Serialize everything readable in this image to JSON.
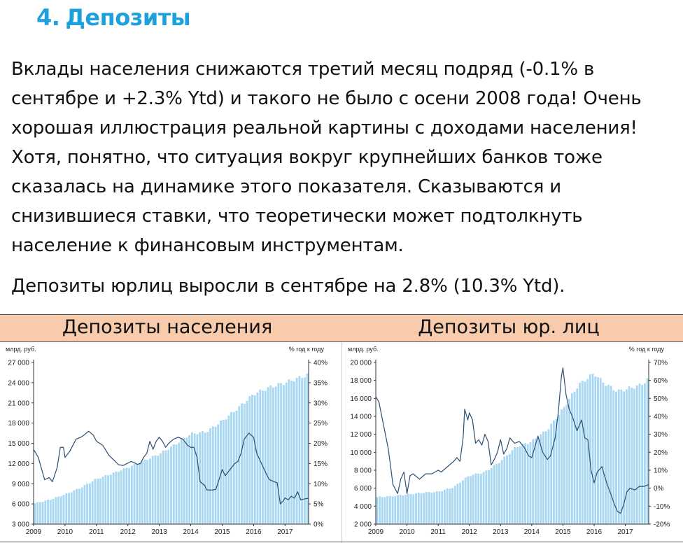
{
  "heading": {
    "number": "4.",
    "text": "Депозиты"
  },
  "paragraphs": [
    "Вклады населения снижаются третий месяц подряд (-0.1% в сентябре и +2.3% Ytd) и такого не было с осени 2008 года! Очень хорошая иллюстрация реальной картины с доходами населения! Хотя, понятно, что ситуация вокруг крупнейших банков тоже сказалась на динамике этого показателя. Сказываются и снизившиеся ставки, что теоретически может подтолкнуть население к финансовым инструментам.",
    "Депозиты юрлиц выросли в сентябре на 2.8% (10.3% Ytd)."
  ],
  "chart_data": [
    {
      "type": "bar+line",
      "title": "Депозиты населения",
      "left_unit": "млрд. руб.",
      "right_unit": "% год к году",
      "x_labels": [
        "2009",
        "2010",
        "2011",
        "2012",
        "2013",
        "2014",
        "2015",
        "2016",
        "2017"
      ],
      "x_range": [
        2009.0,
        2017.75
      ],
      "ylim_left": [
        3000,
        27000
      ],
      "ylim_right": [
        0,
        40
      ],
      "y_ticks_left": [
        "3 000",
        "6 000",
        "9 000",
        "12 000",
        "15 000",
        "18 000",
        "21 000",
        "24 000",
        "27 000"
      ],
      "y_ticks_right": [
        "0%",
        "5%",
        "10%",
        "15%",
        "20%",
        "25%",
        "30%",
        "35%",
        "40%"
      ],
      "bar_color": "#a9d8f2",
      "line_color": "#2b4f73",
      "bar_keypoints": [
        [
          2009.0,
          6050
        ],
        [
          2009.5,
          6600
        ],
        [
          2010.0,
          7400
        ],
        [
          2010.5,
          8400
        ],
        [
          2011.0,
          9700
        ],
        [
          2011.5,
          10500
        ],
        [
          2012.0,
          11400
        ],
        [
          2012.5,
          12400
        ],
        [
          2013.0,
          13400
        ],
        [
          2013.5,
          14800
        ],
        [
          2014.0,
          16400
        ],
        [
          2014.5,
          16700
        ],
        [
          2015.0,
          18300
        ],
        [
          2015.5,
          20200
        ],
        [
          2016.0,
          22300
        ],
        [
          2016.5,
          23300
        ],
        [
          2017.0,
          24000
        ],
        [
          2017.75,
          25200
        ]
      ],
      "line_points": [
        [
          2009.0,
          18.5
        ],
        [
          2009.15,
          16.5
        ],
        [
          2009.35,
          11
        ],
        [
          2009.5,
          11.5
        ],
        [
          2009.6,
          10.5
        ],
        [
          2009.75,
          14
        ],
        [
          2009.85,
          19
        ],
        [
          2009.95,
          19
        ],
        [
          2010.0,
          16.5
        ],
        [
          2010.15,
          18
        ],
        [
          2010.35,
          21
        ],
        [
          2010.5,
          21.5
        ],
        [
          2010.6,
          22
        ],
        [
          2010.75,
          23
        ],
        [
          2010.9,
          22
        ],
        [
          2011.0,
          20.5
        ],
        [
          2011.2,
          19.5
        ],
        [
          2011.4,
          17
        ],
        [
          2011.6,
          15.5
        ],
        [
          2011.7,
          14.7
        ],
        [
          2011.85,
          14.5
        ],
        [
          2011.95,
          14.9
        ],
        [
          2012.1,
          15.5
        ],
        [
          2012.2,
          15.2
        ],
        [
          2012.3,
          14.8
        ],
        [
          2012.4,
          15.0
        ],
        [
          2012.5,
          16.5
        ],
        [
          2012.6,
          17.5
        ],
        [
          2012.7,
          20.5
        ],
        [
          2012.8,
          18.5
        ],
        [
          2012.9,
          20.5
        ],
        [
          2013.0,
          21.5
        ],
        [
          2013.1,
          20.5
        ],
        [
          2013.2,
          19
        ],
        [
          2013.3,
          20
        ],
        [
          2013.45,
          21
        ],
        [
          2013.6,
          21.5
        ],
        [
          2013.75,
          21.0
        ],
        [
          2013.9,
          19.5
        ],
        [
          2014.0,
          19.0
        ],
        [
          2014.1,
          19.0
        ],
        [
          2014.2,
          16.5
        ],
        [
          2014.3,
          10.5
        ],
        [
          2014.45,
          9.5
        ],
        [
          2014.5,
          8.5
        ],
        [
          2014.65,
          8.4
        ],
        [
          2014.8,
          8.6
        ],
        [
          2014.9,
          11.0
        ],
        [
          2015.0,
          13.5
        ],
        [
          2015.1,
          12.0
        ],
        [
          2015.25,
          13.5
        ],
        [
          2015.4,
          15.0
        ],
        [
          2015.5,
          15.5
        ],
        [
          2015.6,
          17.5
        ],
        [
          2015.7,
          21.0
        ],
        [
          2015.85,
          22.5
        ],
        [
          2016.0,
          21.5
        ],
        [
          2016.1,
          17.5
        ],
        [
          2016.25,
          15.0
        ],
        [
          2016.4,
          12.5
        ],
        [
          2016.5,
          11.0
        ],
        [
          2016.65,
          10.5
        ],
        [
          2016.75,
          10.2
        ],
        [
          2016.85,
          5.0
        ],
        [
          2016.95,
          5.8
        ],
        [
          2017.0,
          6.5
        ],
        [
          2017.1,
          6.0
        ],
        [
          2017.2,
          6.9
        ],
        [
          2017.3,
          6.4
        ],
        [
          2017.4,
          8.0
        ],
        [
          2017.5,
          6.0
        ],
        [
          2017.6,
          6.2
        ],
        [
          2017.75,
          6.4
        ]
      ]
    },
    {
      "type": "bar+line",
      "title": "Депозиты юр. лиц",
      "left_unit": "млрд. руб.",
      "right_unit": "% год к году",
      "x_labels": [
        "2009",
        "2010",
        "2011",
        "2012",
        "2013",
        "2014",
        "2015",
        "2016",
        "2017"
      ],
      "x_range": [
        2009.0,
        2017.75
      ],
      "ylim_left": [
        2000,
        20000
      ],
      "ylim_right": [
        -20,
        70
      ],
      "y_ticks_left": [
        "2 000",
        "4 000",
        "6 000",
        "8 000",
        "10 000",
        "12 000",
        "14 000",
        "16 000",
        "18 000",
        "20 000"
      ],
      "y_ticks_right": [
        "-20%",
        "-10%",
        "0%",
        "10%",
        "20%",
        "30%",
        "40%",
        "50%",
        "60%",
        "70%"
      ],
      "bar_color": "#a9d8f2",
      "line_color": "#2b4f73",
      "bar_keypoints": [
        [
          2009.0,
          5000
        ],
        [
          2009.5,
          5100
        ],
        [
          2010.0,
          5300
        ],
        [
          2010.5,
          5500
        ],
        [
          2011.0,
          5600
        ],
        [
          2011.5,
          6100
        ],
        [
          2011.75,
          6800
        ],
        [
          2012.0,
          7400
        ],
        [
          2012.5,
          7800
        ],
        [
          2013.0,
          9000
        ],
        [
          2013.5,
          10600
        ],
        [
          2014.0,
          11200
        ],
        [
          2014.5,
          12500
        ],
        [
          2015.0,
          14800
        ],
        [
          2015.5,
          17500
        ],
        [
          2016.0,
          18800
        ],
        [
          2016.25,
          17900
        ],
        [
          2016.5,
          17300
        ],
        [
          2016.75,
          16800
        ],
        [
          2017.0,
          17000
        ],
        [
          2017.5,
          17500
        ],
        [
          2017.75,
          18200
        ]
      ],
      "line_points": [
        [
          2009.0,
          51
        ],
        [
          2009.1,
          48
        ],
        [
          2009.25,
          35
        ],
        [
          2009.4,
          22
        ],
        [
          2009.55,
          2
        ],
        [
          2009.7,
          -3
        ],
        [
          2009.8,
          5
        ],
        [
          2009.9,
          9
        ],
        [
          2010.0,
          -3
        ],
        [
          2010.1,
          7
        ],
        [
          2010.2,
          8
        ],
        [
          2010.4,
          5
        ],
        [
          2010.6,
          8
        ],
        [
          2010.8,
          8
        ],
        [
          2011.0,
          10
        ],
        [
          2011.1,
          9
        ],
        [
          2011.3,
          12
        ],
        [
          2011.5,
          15
        ],
        [
          2011.6,
          17
        ],
        [
          2011.7,
          15
        ],
        [
          2011.8,
          28
        ],
        [
          2011.85,
          44
        ],
        [
          2011.95,
          38
        ],
        [
          2012.0,
          42
        ],
        [
          2012.1,
          38
        ],
        [
          2012.2,
          25
        ],
        [
          2012.3,
          27
        ],
        [
          2012.4,
          24
        ],
        [
          2012.5,
          30
        ],
        [
          2012.6,
          26
        ],
        [
          2012.7,
          13
        ],
        [
          2012.8,
          16
        ],
        [
          2012.9,
          20
        ],
        [
          2013.0,
          27
        ],
        [
          2013.1,
          19
        ],
        [
          2013.2,
          22
        ],
        [
          2013.3,
          28
        ],
        [
          2013.45,
          25
        ],
        [
          2013.6,
          26
        ],
        [
          2013.75,
          23
        ],
        [
          2013.9,
          18
        ],
        [
          2014.0,
          17
        ],
        [
          2014.1,
          23
        ],
        [
          2014.2,
          29
        ],
        [
          2014.35,
          20
        ],
        [
          2014.5,
          16
        ],
        [
          2014.6,
          18
        ],
        [
          2014.75,
          28
        ],
        [
          2014.85,
          42
        ],
        [
          2014.95,
          62
        ],
        [
          2015.0,
          67
        ],
        [
          2015.1,
          52
        ],
        [
          2015.2,
          44
        ],
        [
          2015.3,
          40
        ],
        [
          2015.45,
          32
        ],
        [
          2015.6,
          38
        ],
        [
          2015.7,
          28
        ],
        [
          2015.8,
          27
        ],
        [
          2015.9,
          10
        ],
        [
          2016.0,
          3
        ],
        [
          2016.1,
          9
        ],
        [
          2016.25,
          12
        ],
        [
          2016.4,
          3
        ],
        [
          2016.55,
          -4
        ],
        [
          2016.65,
          -9
        ],
        [
          2016.75,
          -13
        ],
        [
          2016.85,
          -14
        ],
        [
          2016.95,
          -9
        ],
        [
          2017.05,
          -2
        ],
        [
          2017.15,
          0
        ],
        [
          2017.3,
          -1
        ],
        [
          2017.45,
          1
        ],
        [
          2017.6,
          1
        ],
        [
          2017.75,
          2
        ]
      ]
    }
  ]
}
